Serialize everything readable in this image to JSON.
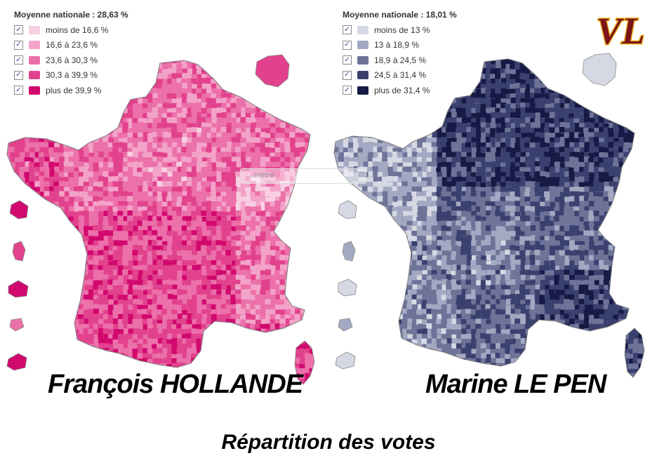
{
  "maps": [
    {
      "id": "left",
      "legend_title": "Moyenne nationale : 28,63 %",
      "legend_items": [
        {
          "label": "moins de 16,6 %",
          "color": "#f8cfe2"
        },
        {
          "label": "16,6 à 23,6 %",
          "color": "#f3a3c8"
        },
        {
          "label": "23,6 à 30,3 %",
          "color": "#ec70aa"
        },
        {
          "label": "30,3 à 39,9 %",
          "color": "#e2428d"
        },
        {
          "label": "plus de 39,9 %",
          "color": "#d1096f"
        }
      ],
      "candidate": "François HOLLANDE",
      "base_color": "#e85b9c"
    },
    {
      "id": "right",
      "legend_title": "Moyenne nationale : 18,01 %",
      "legend_items": [
        {
          "label": "moins de 13 %",
          "color": "#d6d8e4"
        },
        {
          "label": "13 à 18,9 %",
          "color": "#a4a9c3"
        },
        {
          "label": "18,9 à 24,5 %",
          "color": "#6e7498"
        },
        {
          "label": "24,5 à 31,4 %",
          "color": "#3b416f"
        },
        {
          "label": "plus de 31,4 %",
          "color": "#161a45"
        }
      ],
      "candidate": "Marine LE PEN",
      "base_color": "#4a5080"
    }
  ],
  "caption": "Répartition des votes",
  "search_placeholder": "…mètre",
  "logo_text": "VL",
  "logo_colors": {
    "fill": "#7a1416",
    "outline": "#e8b020"
  }
}
